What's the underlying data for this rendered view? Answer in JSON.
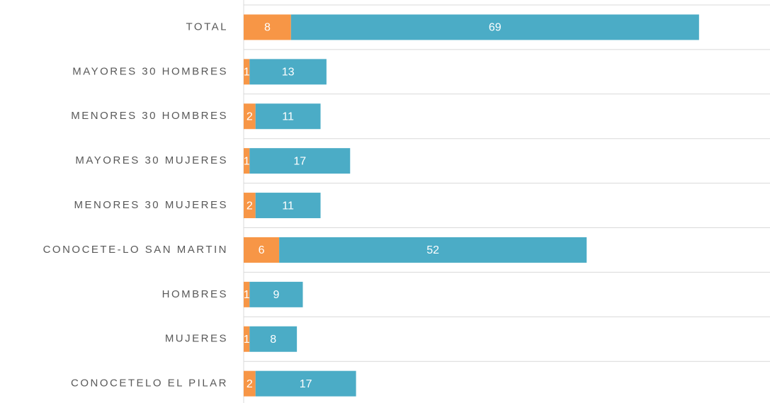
{
  "chart_data": {
    "type": "bar",
    "orientation": "horizontal",
    "stacked": true,
    "categories": [
      "TOTAL",
      "MAYORES 30 HOMBRES",
      "MENORES 30 HOMBRES",
      "MAYORES 30 MUJERES",
      "MENORES 30 MUJERES",
      "CONOCETE-LO SAN MARTIN",
      "HOMBRES",
      "MUJERES",
      "CONOCETELO EL PILAR"
    ],
    "series": [
      {
        "color": "#f79646",
        "values": [
          8,
          1,
          2,
          1,
          2,
          6,
          1,
          1,
          2
        ]
      },
      {
        "color": "#4bacc6",
        "values": [
          69,
          13,
          11,
          17,
          11,
          52,
          9,
          8,
          17
        ]
      }
    ],
    "xlim": [
      0,
      89
    ]
  }
}
